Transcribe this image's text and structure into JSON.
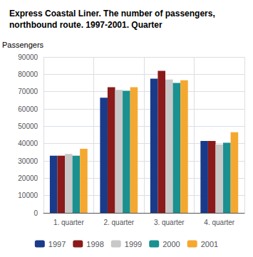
{
  "chart_data": {
    "type": "bar",
    "title": "Express Coastal Liner. The number of passengers,\nnorthbound route. 1997-2001. Quarter",
    "ylabel": "Passengers",
    "categories": [
      "1. quarter",
      "2. quarter",
      "3. quarter",
      "4. quarter"
    ],
    "series": [
      {
        "name": "1997",
        "color": "#1a3a8a",
        "values": [
          33000,
          66500,
          77500,
          41500
        ]
      },
      {
        "name": "1998",
        "color": "#8b1a1a",
        "values": [
          33000,
          72500,
          82000,
          41500
        ]
      },
      {
        "name": "1999",
        "color": "#c8c8c8",
        "values": [
          34000,
          71000,
          77000,
          39500
        ]
      },
      {
        "name": "2000",
        "color": "#1a9090",
        "values": [
          33000,
          70500,
          75000,
          40500
        ]
      },
      {
        "name": "2001",
        "color": "#f5a830",
        "values": [
          37000,
          72500,
          76500,
          46500
        ]
      }
    ],
    "ylim": [
      0,
      90000
    ],
    "yticks": [
      0,
      10000,
      20000,
      30000,
      40000,
      50000,
      60000,
      70000,
      80000,
      90000
    ],
    "grid": true,
    "legend": "bottom"
  }
}
